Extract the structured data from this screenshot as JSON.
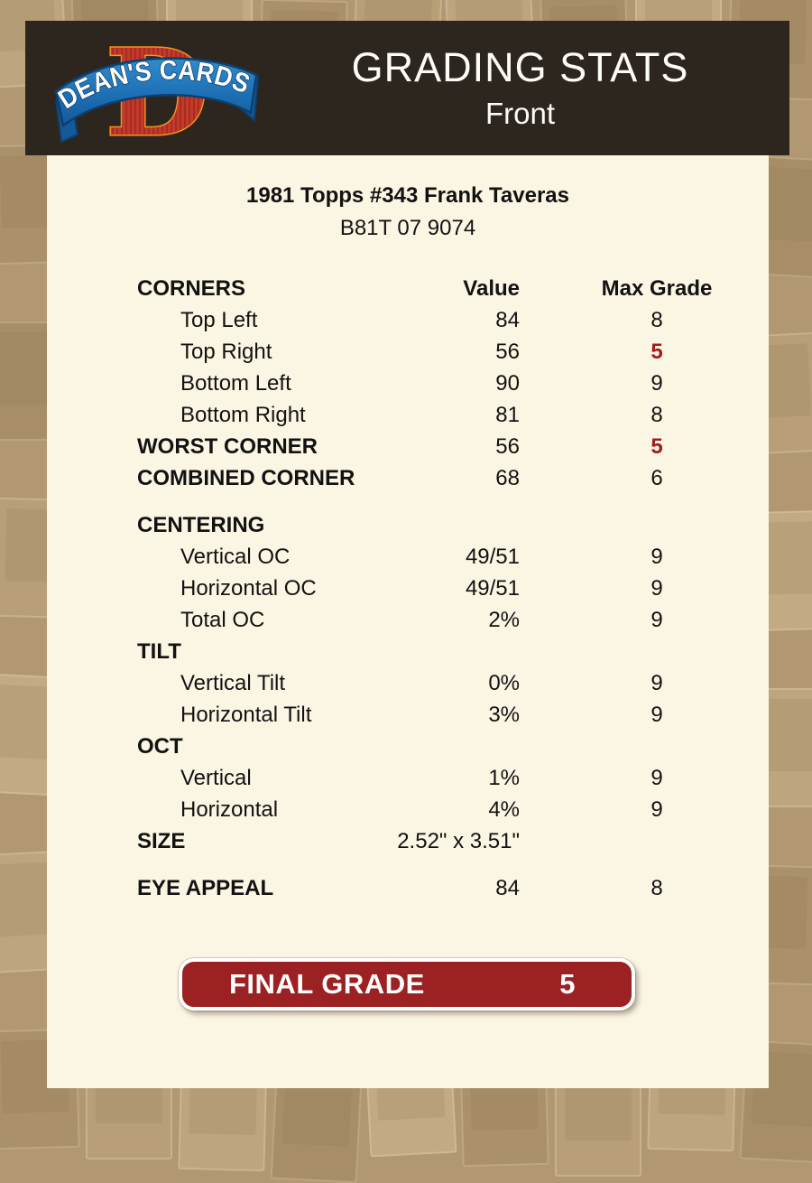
{
  "logo": {
    "banner_text": "DEAN'S CARDS",
    "monogram": "D"
  },
  "header": {
    "title": "GRADING STATS",
    "side": "Front"
  },
  "card": {
    "title": "1981 Topps #343 Frank Taveras",
    "serial": "B81T 07 9074"
  },
  "table": {
    "section_header": "CORNERS",
    "columns": {
      "value": "Value",
      "max_grade": "Max Grade"
    },
    "rows": [
      {
        "label": "Top Left",
        "value": "84",
        "max": "8",
        "kind": "item"
      },
      {
        "label": "Top Right",
        "value": "56",
        "max": "5",
        "kind": "item",
        "max_red": true
      },
      {
        "label": "Bottom Left",
        "value": "90",
        "max": "9",
        "kind": "item"
      },
      {
        "label": "Bottom Right",
        "value": "81",
        "max": "8",
        "kind": "item"
      },
      {
        "label": "WORST CORNER",
        "value": "56",
        "max": "5",
        "kind": "bold",
        "max_red": true
      },
      {
        "label": "COMBINED CORNER",
        "value": "68",
        "max": "6",
        "kind": "bold"
      },
      {
        "label": "CENTERING",
        "value": "",
        "max": "",
        "kind": "section",
        "spacer_before": true
      },
      {
        "label": "Vertical OC",
        "value": "49/51",
        "max": "9",
        "kind": "item"
      },
      {
        "label": "Horizontal OC",
        "value": "49/51",
        "max": "9",
        "kind": "item"
      },
      {
        "label": "Total OC",
        "value": "2%",
        "max": "9",
        "kind": "item"
      },
      {
        "label": "TILT",
        "value": "",
        "max": "",
        "kind": "section"
      },
      {
        "label": "Vertical Tilt",
        "value": "0%",
        "max": "9",
        "kind": "item"
      },
      {
        "label": "Horizontal Tilt",
        "value": "3%",
        "max": "9",
        "kind": "item"
      },
      {
        "label": "OCT",
        "value": "",
        "max": "",
        "kind": "section"
      },
      {
        "label": "Vertical",
        "value": "1%",
        "max": "9",
        "kind": "item"
      },
      {
        "label": "Horizontal",
        "value": "4%",
        "max": "9",
        "kind": "item"
      },
      {
        "label": "SIZE",
        "value": "2.52\" x 3.51\"",
        "max": "",
        "kind": "bold"
      },
      {
        "label": "EYE APPEAL",
        "value": "84",
        "max": "8",
        "kind": "bold",
        "spacer_before": true
      }
    ]
  },
  "final_grade": {
    "label": "FINAL GRADE",
    "value": "5"
  },
  "colors": {
    "accent_red": "#9c1c21",
    "button_red": "#9b2123",
    "header_bg": "#2d261e",
    "panel_bg": "#fbf5e3",
    "page_bg": "#b29872",
    "logo_red": "#c13a2b",
    "logo_orange": "#f6921e",
    "ribbon_blue": "#1d6fb5"
  }
}
